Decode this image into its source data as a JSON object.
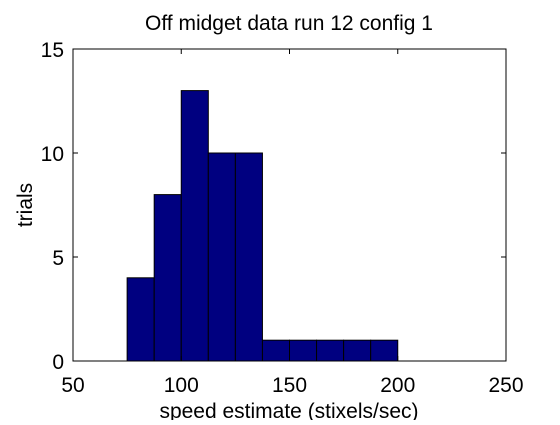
{
  "chart_data": {
    "type": "bar",
    "subtype": "histogram",
    "title": "Off midget data run 12 config 1",
    "xlabel": "speed estimate (stixels/sec)",
    "ylabel": "trials",
    "xlim": [
      50,
      250
    ],
    "ylim": [
      0,
      15
    ],
    "xticks": [
      50,
      100,
      150,
      200,
      250
    ],
    "yticks": [
      0,
      5,
      10,
      15
    ],
    "bin_width": 12.5,
    "bin_edges": [
      75,
      87.5,
      100,
      112.5,
      125,
      137.5,
      150,
      162.5,
      175,
      187.5,
      200
    ],
    "values": [
      4,
      8,
      13,
      10,
      10,
      1,
      1,
      1,
      1,
      1
    ],
    "bar_color": "#000080",
    "edge_color": "#000000",
    "grid": false,
    "legend": "none"
  }
}
